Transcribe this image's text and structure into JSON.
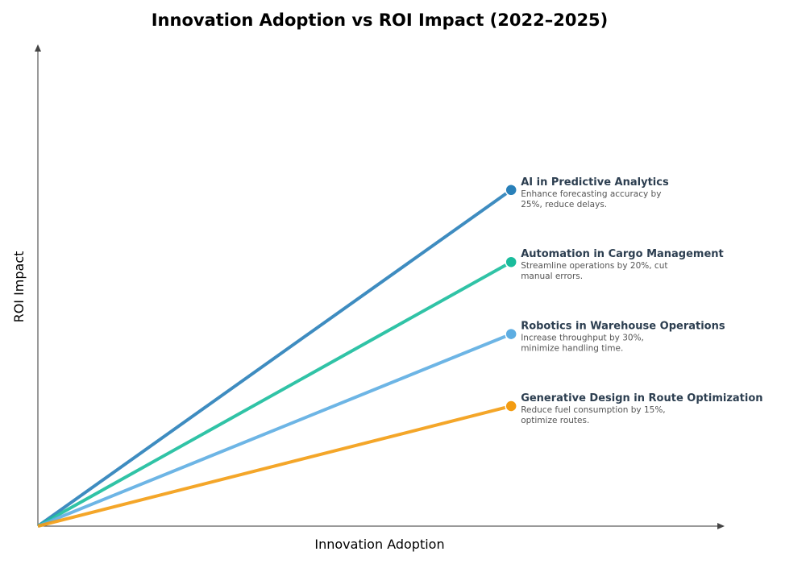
{
  "chart_data": {
    "type": "line",
    "title": "Innovation Adoption vs ROI Impact (2022–2025)",
    "xlabel": "Innovation Adoption",
    "ylabel": "ROI Impact",
    "xlim": [
      0,
      1
    ],
    "ylim": [
      0,
      1
    ],
    "grid": false,
    "ticks_shown": false,
    "series": [
      {
        "name": "AI in Predictive Analytics",
        "description": [
          "Enhance forecasting accuracy by",
          "25%, reduce delays."
        ],
        "color": "#2980b9",
        "x": [
          0,
          0.69
        ],
        "y": [
          0,
          0.7
        ]
      },
      {
        "name": "Automation in Cargo Management",
        "description": [
          "Streamline operations by 20%, cut",
          "manual errors."
        ],
        "color": "#1abc9c",
        "x": [
          0,
          0.69
        ],
        "y": [
          0,
          0.55
        ]
      },
      {
        "name": "Robotics in Warehouse Operations",
        "description": [
          "Increase throughput by 30%,",
          "minimize handling time."
        ],
        "color": "#5dade2",
        "x": [
          0,
          0.69
        ],
        "y": [
          0,
          0.4
        ]
      },
      {
        "name": "Generative Design in Route Optimization",
        "description": [
          "Reduce fuel consumption by 15%,",
          "optimize routes."
        ],
        "color": "#f39c12",
        "x": [
          0,
          0.69
        ],
        "y": [
          0,
          0.25
        ]
      }
    ]
  }
}
